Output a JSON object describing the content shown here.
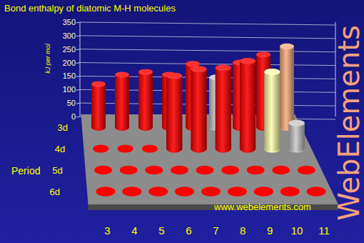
{
  "chart_data": {
    "type": "bar",
    "title": "Bond enthalpy of diatomic M-H molecules",
    "y_label": "kJ per mol",
    "depth_label": "Period",
    "annotations": [
      "www.webelements.com",
      "WebElements"
    ],
    "categories": [
      "3",
      "4",
      "5",
      "6",
      "7",
      "8",
      "9",
      "10",
      "11"
    ],
    "series": [
      {
        "name": "3d",
        "values": [
          160,
          195,
          205,
          195,
          235,
          185,
          240,
          270,
          300
        ],
        "colors": [
          "#ff0000",
          "#ff0000",
          "#ff0000",
          "#ff0000",
          "#ff0000",
          "#c8c8c8",
          "#ff0000",
          "#ff0000",
          "#f8b080"
        ]
      },
      {
        "name": "4d",
        "values": [
          null,
          null,
          null,
          270,
          295,
          300,
          325,
          285,
          95
        ],
        "colors": [
          "#ff0000",
          "#ff0000",
          "#ff0000",
          "#ff0000",
          "#ff0000",
          "#ff0000",
          "#ff0000",
          "#ffffb0",
          "#c8c8c8"
        ]
      },
      {
        "name": "5d",
        "values": [
          null,
          null,
          null,
          null,
          null,
          null,
          null,
          null,
          null
        ],
        "color": "#ff0000"
      },
      {
        "name": "6d",
        "values": [
          null,
          null,
          null,
          null,
          null,
          null,
          null,
          null,
          null
        ],
        "color": "#ff0000"
      }
    ],
    "ylim": [
      0,
      350
    ],
    "yticks": [
      0,
      50,
      100,
      150,
      200,
      250,
      300,
      350
    ],
    "grid": true
  }
}
